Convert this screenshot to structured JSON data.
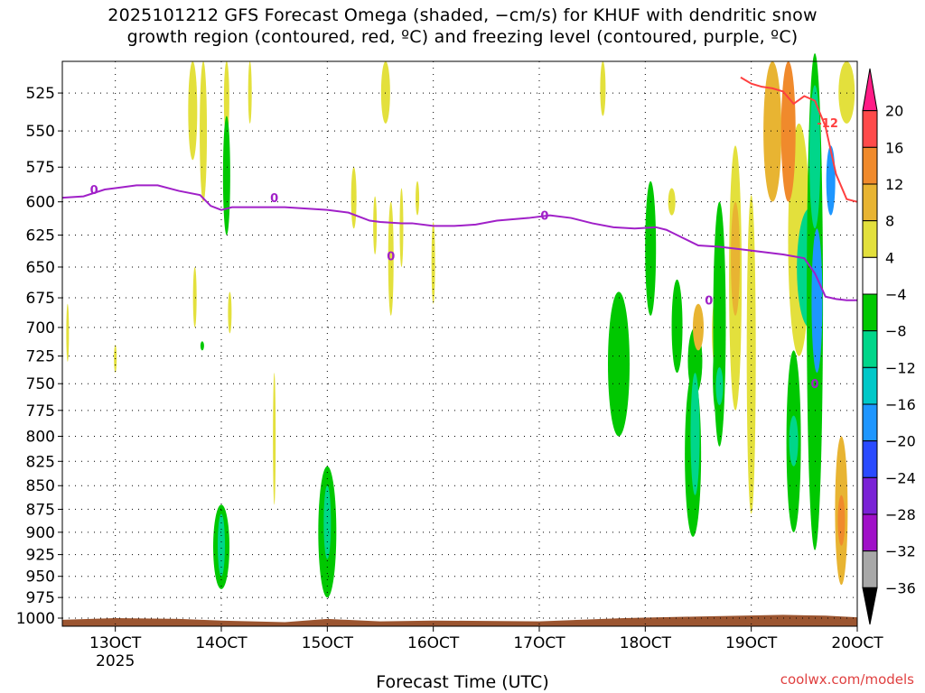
{
  "title_line1": "2025101212 GFS Forecast Omega (shaded, −cm/s) for KHUF with dendritic snow",
  "title_line2": "growth region (contoured, red, ºC) and freezing level (contoured, purple, ºC)",
  "credit": "coolwx.com/models",
  "chart_data": {
    "type": "heatmap",
    "title": "2025101212 GFS Forecast Omega (shaded, −cm/s) for KHUF with dendritic snow growth region (contoured, red, ºC) and freezing level (contoured, purple, ºC)",
    "xlabel": "Forecast Time (UTC)",
    "ylabel": "",
    "x_ticks": [
      "13OCT",
      "14OCT",
      "15OCT",
      "16OCT",
      "17OCT",
      "18OCT",
      "19OCT",
      "20OCT"
    ],
    "x_year_label": "2025",
    "y_ticks": [
      525,
      550,
      575,
      600,
      625,
      650,
      675,
      700,
      725,
      750,
      775,
      800,
      825,
      850,
      875,
      900,
      925,
      950,
      975,
      1000
    ],
    "y_scale": "log-pressure (inverted)",
    "grid": true,
    "colorbar": {
      "labels": [
        "20",
        "16",
        "12",
        "8",
        "4",
        "−4",
        "−8",
        "−12",
        "−16",
        "−20",
        "−24",
        "−28",
        "−32",
        "−36"
      ],
      "colors": [
        "#ff1c86",
        "#ff4a4a",
        "#f08a2c",
        "#e8b432",
        "#e3e03c",
        "#ffffff",
        "#00c800",
        "#00d68a",
        "#00c8c8",
        "#1e96ff",
        "#2a4bff",
        "#7a22d6",
        "#a010c8",
        "#a8a8a8",
        "#000000"
      ]
    },
    "freezing_level_label": "0",
    "freezing_level_color": "#a020c8",
    "dgz_label": "-12",
    "dgz_color": "#ff4040",
    "ground_color": "#9b5530",
    "freezing_level_pressure": [
      [
        12.5,
        597
      ],
      [
        12.7,
        596
      ],
      [
        12.9,
        591
      ],
      [
        13.0,
        590
      ],
      [
        13.2,
        588
      ],
      [
        13.4,
        588
      ],
      [
        13.6,
        592
      ],
      [
        13.8,
        595
      ],
      [
        13.9,
        603
      ],
      [
        14.0,
        606
      ],
      [
        14.1,
        604
      ],
      [
        14.3,
        604
      ],
      [
        14.6,
        604
      ],
      [
        14.8,
        605
      ],
      [
        15.0,
        606
      ],
      [
        15.2,
        608
      ],
      [
        15.4,
        614
      ],
      [
        15.5,
        615
      ],
      [
        15.7,
        616
      ],
      [
        15.8,
        616
      ],
      [
        16.0,
        618
      ],
      [
        16.2,
        618
      ],
      [
        16.4,
        617
      ],
      [
        16.6,
        614
      ],
      [
        16.9,
        612
      ],
      [
        17.1,
        610
      ],
      [
        17.3,
        612
      ],
      [
        17.5,
        616
      ],
      [
        17.7,
        619
      ],
      [
        17.9,
        620
      ],
      [
        18.1,
        619
      ],
      [
        18.2,
        621
      ],
      [
        18.3,
        625
      ],
      [
        18.5,
        633
      ],
      [
        18.7,
        634
      ],
      [
        18.9,
        636
      ],
      [
        19.1,
        638
      ],
      [
        19.3,
        640
      ],
      [
        19.5,
        643
      ],
      [
        19.6,
        655
      ],
      [
        19.7,
        674
      ],
      [
        19.8,
        676
      ],
      [
        19.9,
        677
      ],
      [
        20.0,
        677
      ]
    ],
    "dgz_minus12_pressure": [
      [
        18.9,
        515
      ],
      [
        19.0,
        519
      ],
      [
        19.1,
        521
      ],
      [
        19.2,
        522
      ],
      [
        19.3,
        524
      ],
      [
        19.4,
        532
      ],
      [
        19.5,
        527
      ],
      [
        19.6,
        530
      ],
      [
        19.7,
        547
      ],
      [
        19.8,
        580
      ],
      [
        19.9,
        598
      ],
      [
        20.0,
        600
      ]
    ],
    "omega_regions_note": "Shaded omega cells: weak positive (4-8, yellow) scattered 13-19OCT; negative (-4 to -12 green/teal) near 14OCT and 15OCT low levels and 18-20OCT deep layer; strongest upward motion (-16 to -20, blue) near 19.6OCT 600-700 hPa."
  }
}
